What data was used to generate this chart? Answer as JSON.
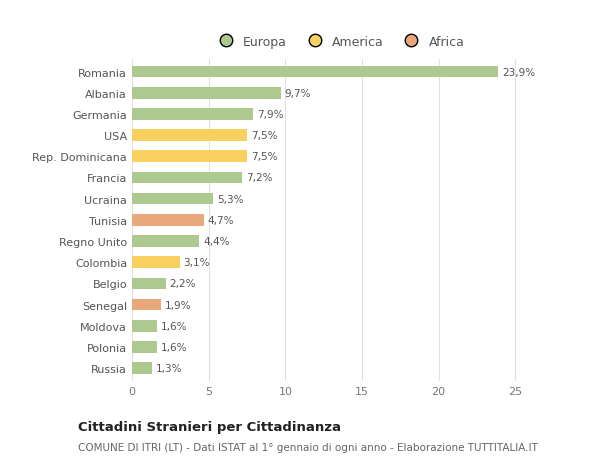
{
  "categories": [
    "Romania",
    "Albania",
    "Germania",
    "USA",
    "Rep. Dominicana",
    "Francia",
    "Ucraina",
    "Tunisia",
    "Regno Unito",
    "Colombia",
    "Belgio",
    "Senegal",
    "Moldova",
    "Polonia",
    "Russia"
  ],
  "values": [
    23.9,
    9.7,
    7.9,
    7.5,
    7.5,
    7.2,
    5.3,
    4.7,
    4.4,
    3.1,
    2.2,
    1.9,
    1.6,
    1.6,
    1.3
  ],
  "continents": [
    "Europa",
    "Europa",
    "Europa",
    "America",
    "America",
    "Europa",
    "Europa",
    "Africa",
    "Europa",
    "America",
    "Europa",
    "Africa",
    "Europa",
    "Europa",
    "Europa"
  ],
  "colors": {
    "Europa": "#adc990",
    "America": "#f7d060",
    "Africa": "#e8a87c"
  },
  "xlim": [
    0,
    27
  ],
  "xticks": [
    0,
    5,
    10,
    15,
    20,
    25
  ],
  "title": "Cittadini Stranieri per Cittadinanza",
  "subtitle": "COMUNE DI ITRI (LT) - Dati ISTAT al 1° gennaio di ogni anno - Elaborazione TUTTITALIA.IT",
  "background_color": "#ffffff",
  "grid_color": "#e0e0e0",
  "bar_height": 0.55,
  "label_fontsize": 7.5,
  "tick_fontsize": 8.0,
  "legend_fontsize": 9.0,
  "title_fontsize": 9.5,
  "subtitle_fontsize": 7.5
}
